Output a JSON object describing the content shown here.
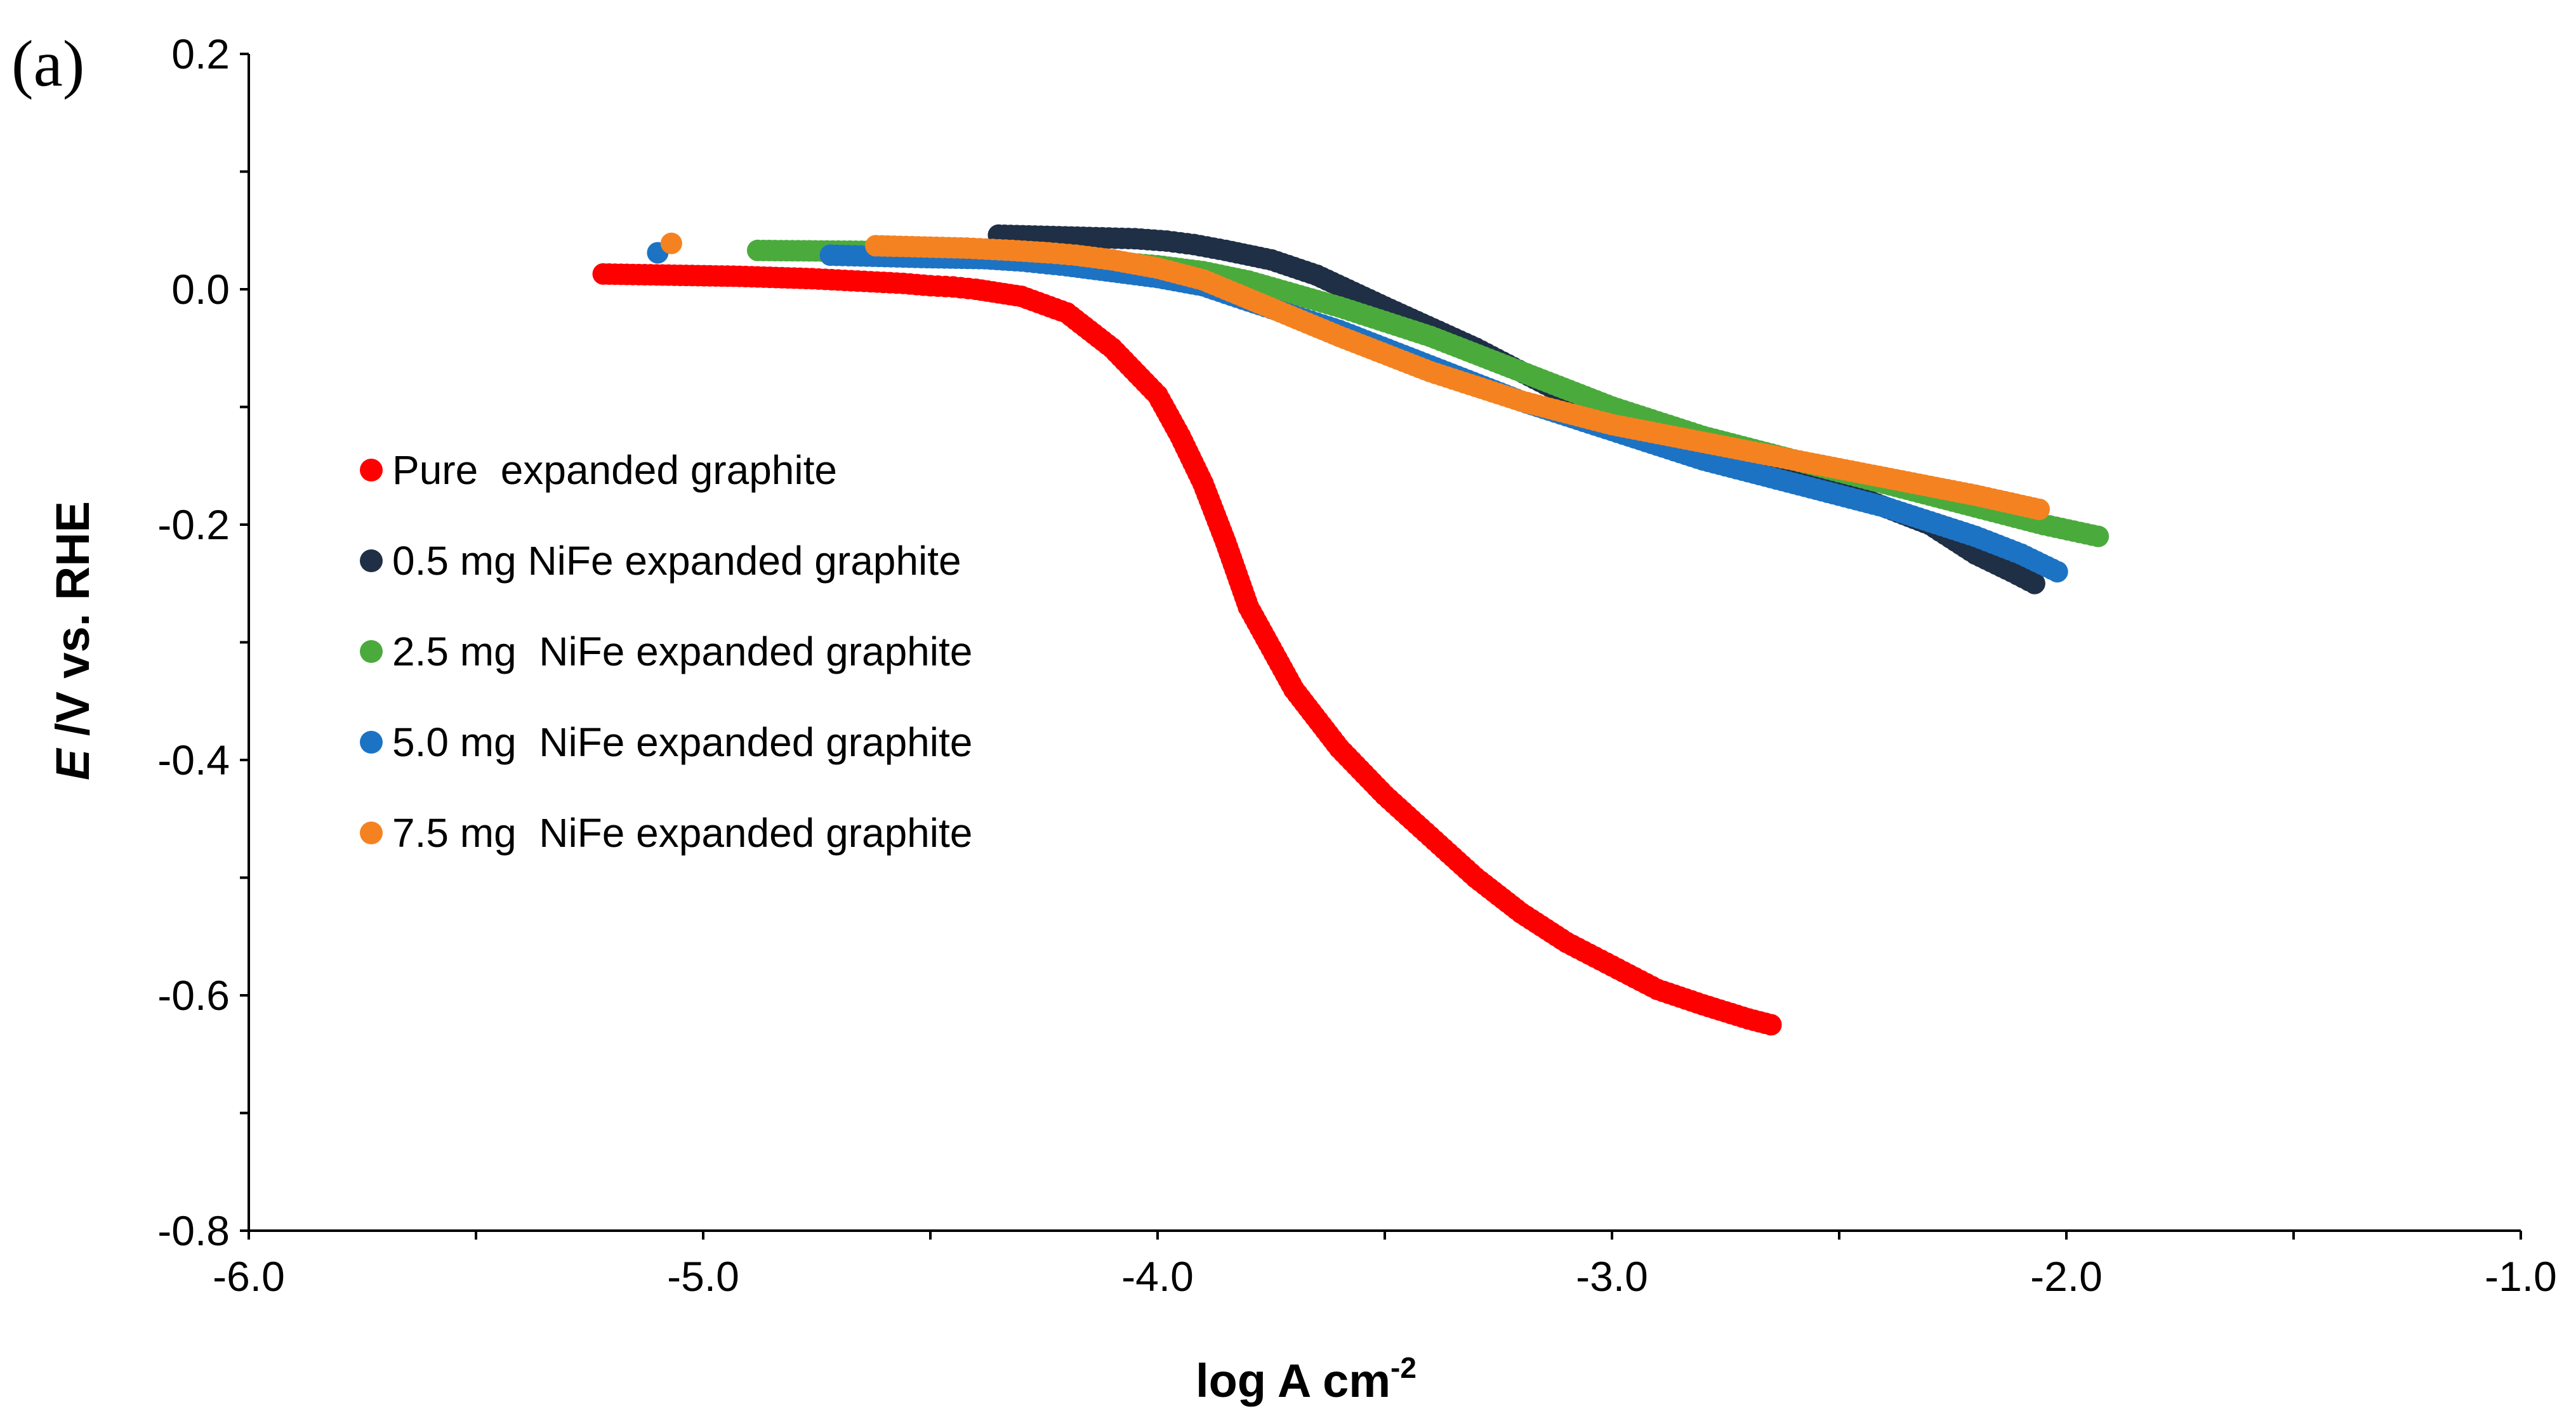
{
  "panel_label": "(a)",
  "chart_data": {
    "type": "scatter",
    "title": "",
    "xlabel": "log A cm",
    "xlabel_superscript": "-2",
    "ylabel_italic": "E",
    "ylabel_rest": " /V vs. RHE",
    "xlim": [
      -6.0,
      -1.0
    ],
    "ylim": [
      -0.8,
      0.2
    ],
    "xticks": [
      -6.0,
      -5.0,
      -4.0,
      -3.0,
      -2.0,
      -1.0
    ],
    "xtick_labels": [
      "-6.0",
      "-5.0",
      "-4.0",
      "-3.0",
      "-2.0",
      "-1.0"
    ],
    "yticks": [
      0.2,
      0.0,
      -0.2,
      -0.4,
      -0.6,
      -0.8
    ],
    "ytick_labels": [
      "0.2",
      "0.0",
      "-0.2",
      "-0.4",
      "-0.6",
      "-0.8"
    ],
    "grid": false,
    "legend_position": "center-left",
    "series": [
      {
        "name": "Pure  expanded graphite",
        "color": "#ff0000",
        "x": [
          -5.22,
          -4.92,
          -4.76,
          -4.66,
          -4.56,
          -4.5,
          -4.45,
          -4.4,
          -4.3,
          -4.2,
          -4.1,
          -4.0,
          -3.95,
          -3.9,
          -3.85,
          -3.8,
          -3.75,
          -3.7,
          -3.6,
          -3.5,
          -3.4,
          -3.3,
          -3.2,
          -3.1,
          -3.0,
          -2.9,
          -2.8,
          -2.7,
          -2.65
        ],
        "y": [
          0.013,
          0.011,
          0.009,
          0.007,
          0.005,
          0.003,
          0.002,
          0.0,
          -0.006,
          -0.02,
          -0.05,
          -0.09,
          -0.125,
          -0.165,
          -0.215,
          -0.27,
          -0.305,
          -0.34,
          -0.39,
          -0.43,
          -0.465,
          -0.5,
          -0.53,
          -0.555,
          -0.575,
          -0.595,
          -0.608,
          -0.62,
          -0.625
        ]
      },
      {
        "name": "0.5 mg NiFe expanded graphite",
        "color": "#1f2f45",
        "x": [
          -4.35,
          -4.15,
          -4.05,
          -3.98,
          -3.92,
          -3.85,
          -3.75,
          -3.65,
          -3.5,
          -3.3,
          -3.1,
          -2.9,
          -2.7,
          -2.5,
          -2.3,
          -2.2,
          -2.12,
          -2.07
        ],
        "y": [
          0.046,
          0.044,
          0.043,
          0.041,
          0.038,
          0.033,
          0.025,
          0.012,
          -0.015,
          -0.05,
          -0.09,
          -0.125,
          -0.15,
          -0.17,
          -0.2,
          -0.225,
          -0.24,
          -0.25
        ]
      },
      {
        "name": "2.5 mg  NiFe expanded graphite",
        "color": "#4aab3c",
        "x": [
          -4.88,
          -4.55,
          -4.38,
          -4.25,
          -4.15,
          -4.0,
          -3.9,
          -3.8,
          -3.6,
          -3.4,
          -3.2,
          -3.0,
          -2.8,
          -2.6,
          -2.4,
          -2.2,
          -2.05,
          -1.93
        ],
        "y": [
          0.033,
          0.032,
          0.03,
          0.028,
          0.025,
          0.02,
          0.015,
          0.007,
          -0.015,
          -0.04,
          -0.07,
          -0.1,
          -0.125,
          -0.145,
          -0.165,
          -0.185,
          -0.2,
          -0.21
        ]
      },
      {
        "name": "5.0 mg  NiFe expanded graphite",
        "color": "#1c73c4",
        "x": [
          -5.1,
          -4.72,
          -4.52,
          -4.38,
          -4.3,
          -4.2,
          -4.1,
          -4.0,
          -3.9,
          -3.8,
          -3.6,
          -3.4,
          -3.2,
          -3.0,
          -2.8,
          -2.6,
          -2.4,
          -2.2,
          -2.1,
          -2.02
        ],
        "y": [
          0.031,
          0.029,
          0.027,
          0.026,
          0.024,
          0.02,
          0.015,
          0.01,
          0.003,
          -0.01,
          -0.035,
          -0.065,
          -0.095,
          -0.12,
          -0.145,
          -0.165,
          -0.185,
          -0.21,
          -0.225,
          -0.24
        ]
      },
      {
        "name": "7.5 mg  NiFe expanded graphite",
        "color": "#f58220",
        "x": [
          -5.07,
          -4.62,
          -4.42,
          -4.32,
          -4.24,
          -4.18,
          -4.1,
          -4.0,
          -3.9,
          -3.8,
          -3.6,
          -3.4,
          -3.2,
          -3.0,
          -2.8,
          -2.6,
          -2.4,
          -2.2,
          -2.06
        ],
        "y": [
          0.039,
          0.037,
          0.035,
          0.033,
          0.031,
          0.029,
          0.025,
          0.018,
          0.008,
          -0.008,
          -0.04,
          -0.07,
          -0.095,
          -0.115,
          -0.13,
          -0.145,
          -0.16,
          -0.175,
          -0.187
        ]
      }
    ]
  }
}
